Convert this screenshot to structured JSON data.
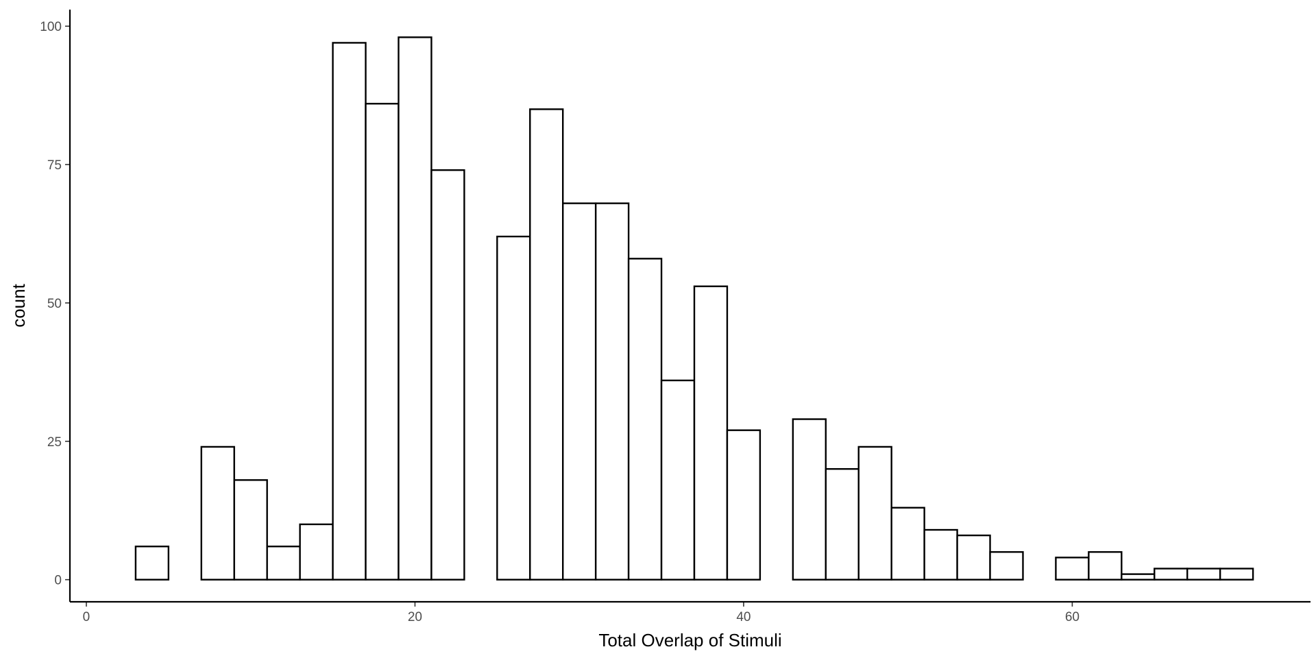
{
  "chart_data": {
    "type": "bar",
    "subtype": "histogram",
    "xlabel": "Total Overlap of Stimuli",
    "ylabel": "count",
    "xlim": [
      -1,
      74.5
    ],
    "ylim": [
      -4,
      103
    ],
    "x_ticks": [
      0,
      20,
      40,
      60
    ],
    "y_ticks": [
      0,
      25,
      50,
      75,
      100
    ],
    "bin_width": 2,
    "bins": [
      {
        "x0": 3,
        "x1": 5,
        "count": 6
      },
      {
        "x0": 5,
        "x1": 7,
        "count": 0
      },
      {
        "x0": 7,
        "x1": 9,
        "count": 24
      },
      {
        "x0": 9,
        "x1": 11,
        "count": 18
      },
      {
        "x0": 11,
        "x1": 13,
        "count": 6
      },
      {
        "x0": 13,
        "x1": 15,
        "count": 10
      },
      {
        "x0": 15,
        "x1": 17,
        "count": 97
      },
      {
        "x0": 17,
        "x1": 19,
        "count": 86
      },
      {
        "x0": 19,
        "x1": 21,
        "count": 98
      },
      {
        "x0": 21,
        "x1": 23,
        "count": 74
      },
      {
        "x0": 23,
        "x1": 25,
        "count": 0
      },
      {
        "x0": 25,
        "x1": 27,
        "count": 62
      },
      {
        "x0": 27,
        "x1": 29,
        "count": 85
      },
      {
        "x0": 29,
        "x1": 31,
        "count": 68
      },
      {
        "x0": 31,
        "x1": 33,
        "count": 68
      },
      {
        "x0": 33,
        "x1": 35,
        "count": 58
      },
      {
        "x0": 35,
        "x1": 37,
        "count": 36
      },
      {
        "x0": 37,
        "x1": 39,
        "count": 53
      },
      {
        "x0": 39,
        "x1": 41,
        "count": 27
      },
      {
        "x0": 41,
        "x1": 43,
        "count": 0
      },
      {
        "x0": 43,
        "x1": 45,
        "count": 29
      },
      {
        "x0": 45,
        "x1": 47,
        "count": 20
      },
      {
        "x0": 47,
        "x1": 49,
        "count": 24
      },
      {
        "x0": 49,
        "x1": 51,
        "count": 13
      },
      {
        "x0": 51,
        "x1": 53,
        "count": 9
      },
      {
        "x0": 53,
        "x1": 55,
        "count": 8
      },
      {
        "x0": 55,
        "x1": 57,
        "count": 5
      },
      {
        "x0": 57,
        "x1": 59,
        "count": 0
      },
      {
        "x0": 59,
        "x1": 61,
        "count": 4
      },
      {
        "x0": 61,
        "x1": 63,
        "count": 5
      },
      {
        "x0": 63,
        "x1": 65,
        "count": 1
      },
      {
        "x0": 65,
        "x1": 67,
        "count": 2
      },
      {
        "x0": 67,
        "x1": 69,
        "count": 2
      },
      {
        "x0": 69,
        "x1": 71,
        "count": 2
      }
    ],
    "grid": false,
    "legend": "none",
    "colors": {
      "bar_fill": "#ffffff",
      "bar_stroke": "#000000",
      "background": "#ffffff",
      "tick_label": "#4d4d4d"
    }
  }
}
